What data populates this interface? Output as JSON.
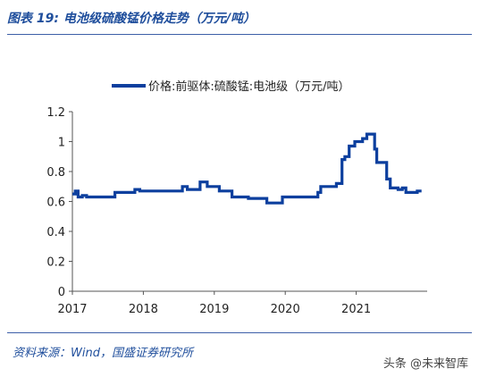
{
  "figure": {
    "title": "图表 19:  电池级硫酸锰价格走势（万元/吨）",
    "source": "资料来源：Wind，国盛证券研究所",
    "watermark": "头条 @未来智库"
  },
  "chart_data": {
    "type": "line",
    "title": "图表 19:  电池级硫酸锰价格走势（万元/吨）",
    "xlabel": "",
    "ylabel": "",
    "x_ticks": [
      "2017",
      "2018",
      "2019",
      "2020",
      "2021"
    ],
    "y_ticks": [
      "0",
      "0.2",
      "0.4",
      "0.6",
      "0.8",
      "1",
      "1.2"
    ],
    "ylim": [
      0,
      1.2
    ],
    "xlim": [
      2017.0,
      2022.0
    ],
    "legend_position": "top",
    "grid": false,
    "line_color": "#0c3f9e",
    "series": [
      {
        "name": "价格:前驱体:硫酸锰:电池级（万元/吨）",
        "x": [
          2017.0,
          2017.04,
          2017.04,
          2017.08,
          2017.08,
          2017.14,
          2017.14,
          2017.2,
          2017.2,
          2017.6,
          2017.6,
          2017.88,
          2017.88,
          2017.95,
          2017.95,
          2018.55,
          2018.55,
          2018.62,
          2018.62,
          2018.8,
          2018.8,
          2018.9,
          2018.9,
          2019.07,
          2019.07,
          2019.25,
          2019.25,
          2019.48,
          2019.48,
          2019.74,
          2019.74,
          2019.96,
          2019.96,
          2020.46,
          2020.46,
          2020.5,
          2020.5,
          2020.72,
          2020.72,
          2020.8,
          2020.8,
          2020.84,
          2020.84,
          2020.9,
          2020.9,
          2020.98,
          2020.98,
          2021.09,
          2021.09,
          2021.15,
          2021.15,
          2021.26,
          2021.26,
          2021.29,
          2021.29,
          2021.43,
          2021.43,
          2021.48,
          2021.48,
          2021.55,
          2021.55,
          2021.59,
          2021.59,
          2021.65,
          2021.65,
          2021.7,
          2021.7,
          2021.86,
          2021.86,
          2021.9,
          2021.9
        ],
        "y": [
          0.65,
          0.65,
          0.67,
          0.67,
          0.63,
          0.63,
          0.64,
          0.64,
          0.63,
          0.63,
          0.66,
          0.66,
          0.68,
          0.68,
          0.67,
          0.67,
          0.7,
          0.7,
          0.68,
          0.68,
          0.73,
          0.73,
          0.7,
          0.7,
          0.67,
          0.67,
          0.63,
          0.63,
          0.62,
          0.62,
          0.59,
          0.59,
          0.63,
          0.63,
          0.66,
          0.66,
          0.7,
          0.7,
          0.72,
          0.72,
          0.88,
          0.88,
          0.9,
          0.9,
          0.97,
          0.97,
          1.0,
          1.0,
          1.02,
          1.02,
          1.05,
          1.05,
          0.95,
          0.95,
          0.86,
          0.86,
          0.75,
          0.75,
          0.69,
          0.69,
          0.69,
          0.69,
          0.68,
          0.68,
          0.69,
          0.69,
          0.66,
          0.66,
          0.67,
          0.67,
          0.66
        ]
      }
    ]
  }
}
